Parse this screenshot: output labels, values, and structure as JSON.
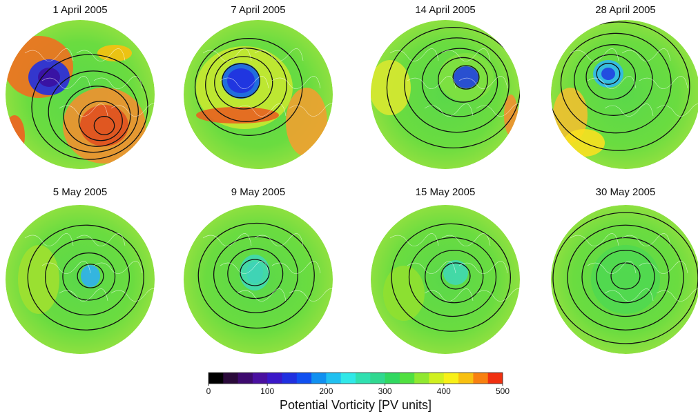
{
  "panels": [
    {
      "title": "1 April 2005"
    },
    {
      "title": "7 April 2005"
    },
    {
      "title": "14 April 2005"
    },
    {
      "title": "28 April 2005"
    },
    {
      "title": "5 May 2005"
    },
    {
      "title": "9 May 2005"
    },
    {
      "title": "15 May 2005"
    },
    {
      "title": "30 May 2005"
    }
  ],
  "colorbar": {
    "label": "Potential Vorticity [PV units]",
    "lim": [
      0,
      500
    ],
    "ticks": [
      0,
      100,
      200,
      300,
      400,
      500
    ],
    "colors": [
      "#000000",
      "#2a0a3a",
      "#3d0a6e",
      "#4a10a0",
      "#3a18c8",
      "#2030e0",
      "#1050f0",
      "#1090f0",
      "#20c0f0",
      "#30e8e8",
      "#30e0b0",
      "#30d890",
      "#30d860",
      "#50e040",
      "#90e830",
      "#d0f020",
      "#f8f018",
      "#f8c010",
      "#f88010",
      "#f03010"
    ]
  }
}
